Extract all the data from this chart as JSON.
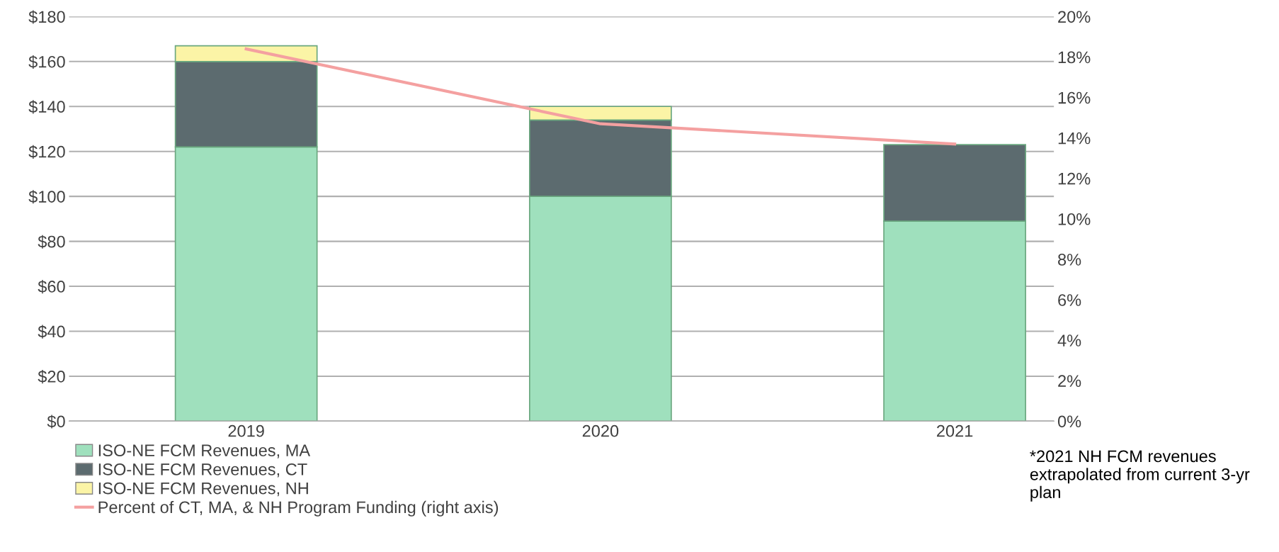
{
  "chart_data": {
    "type": "bar",
    "stacked": true,
    "categories": [
      "2019",
      "2020",
      "2021"
    ],
    "series": [
      {
        "name": "ISO-NE FCM Revenues, MA",
        "color": "#9fe0bd",
        "values": [
          122,
          100,
          89
        ]
      },
      {
        "name": "ISO-NE FCM Revenues, CT",
        "color": "#5c6b6f",
        "values": [
          38,
          34,
          34
        ]
      },
      {
        "name": "ISO-NE FCM Revenues, NH",
        "color": "#fbf4a6",
        "values": [
          7,
          6,
          null
        ]
      },
      {
        "name": "Percent of CT, MA, & NH Program Funding (right axis)",
        "type": "line",
        "axis": "y2",
        "color": "#f4a0a0",
        "values": [
          18.4,
          14.7,
          13.7
        ]
      }
    ],
    "ylim": [
      0,
      180
    ],
    "yticks": [
      {
        "value": 0,
        "label": "$0"
      },
      {
        "value": 20,
        "label": "$20"
      },
      {
        "value": 40,
        "label": "$40"
      },
      {
        "value": 60,
        "label": "$60"
      },
      {
        "value": 80,
        "label": "$80"
      },
      {
        "value": 100,
        "label": "$100"
      },
      {
        "value": 120,
        "label": "$120"
      },
      {
        "value": 140,
        "label": "$140"
      },
      {
        "value": 160,
        "label": "$160"
      },
      {
        "value": 180,
        "label": "$180"
      }
    ],
    "y2lim": [
      0,
      20
    ],
    "y2ticks": [
      {
        "value": 0,
        "label": "0%"
      },
      {
        "value": 2,
        "label": "2%"
      },
      {
        "value": 4,
        "label": "4%"
      },
      {
        "value": 6,
        "label": "6%"
      },
      {
        "value": 8,
        "label": "8%"
      },
      {
        "value": 10,
        "label": "10%"
      },
      {
        "value": 12,
        "label": "12%"
      },
      {
        "value": 14,
        "label": "14%"
      },
      {
        "value": 16,
        "label": "16%"
      },
      {
        "value": 18,
        "label": "18%"
      },
      {
        "value": 20,
        "label": "20%"
      }
    ],
    "grid": "y",
    "legend": "bottom left",
    "annotations": [
      "*2021 NH FCM revenues extrapolated from current 3-yr plan"
    ]
  }
}
